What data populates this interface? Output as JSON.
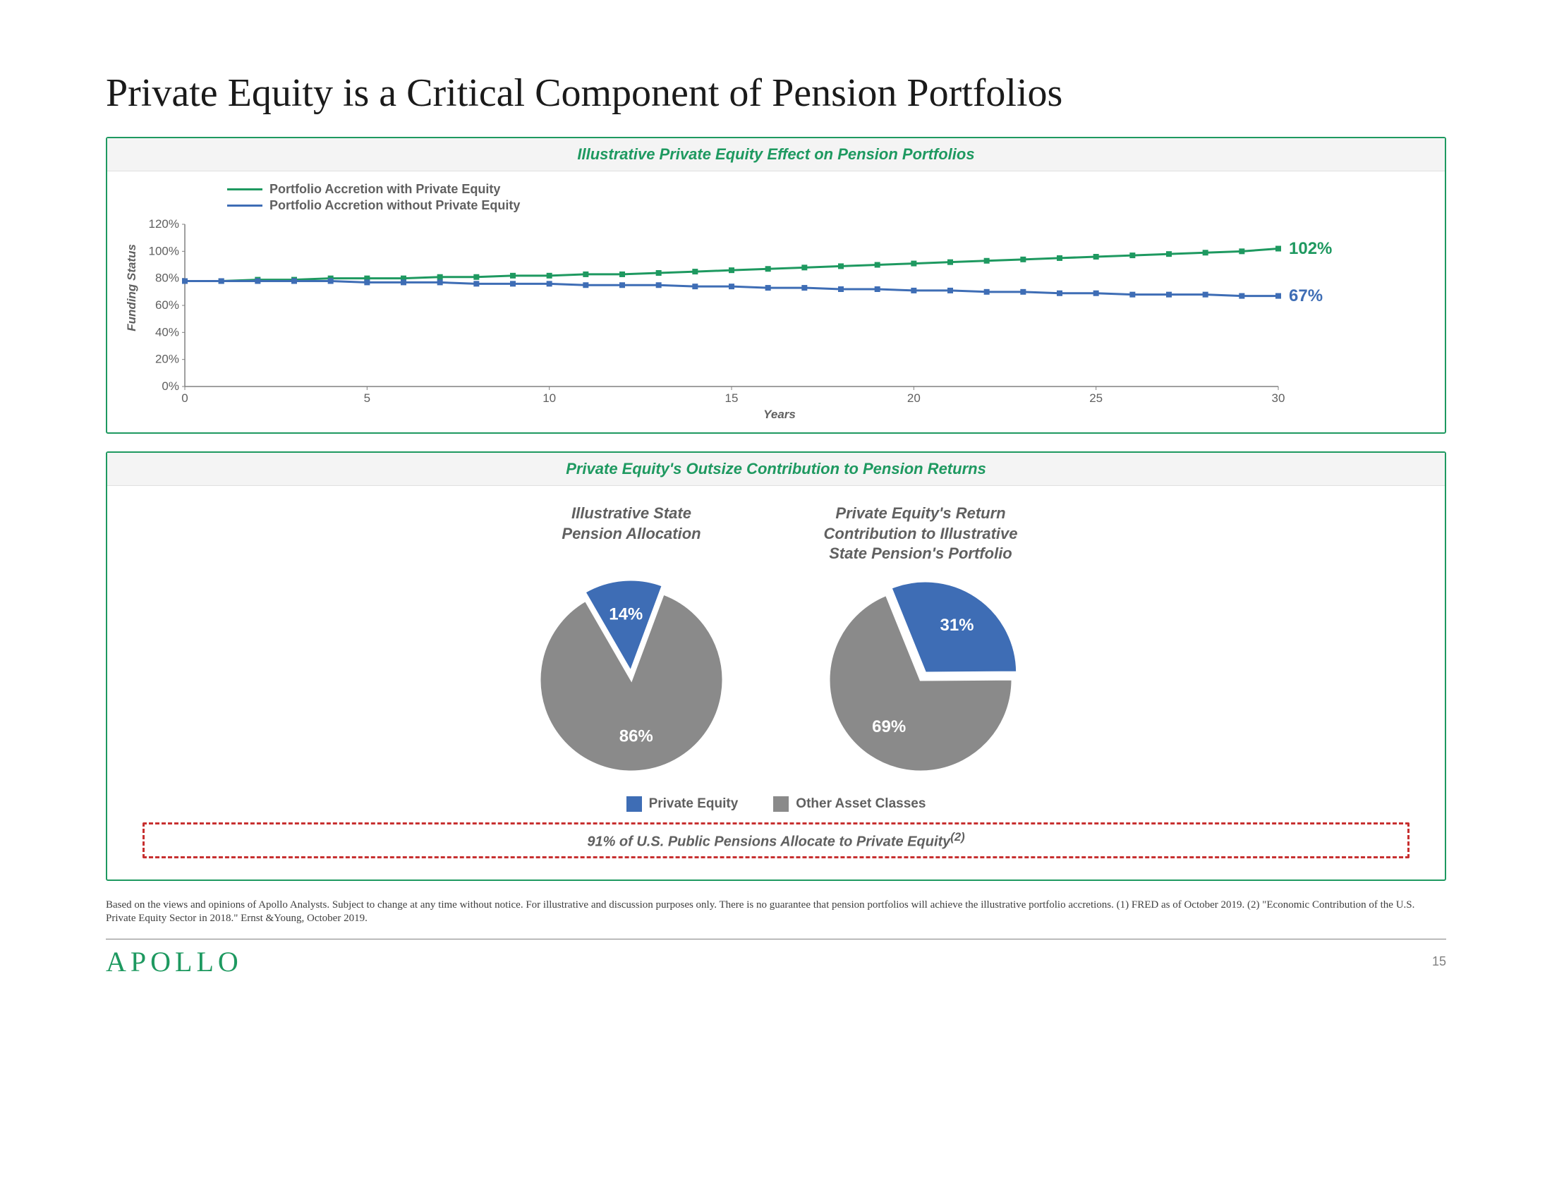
{
  "page_title": "Private Equity is a Critical Component of Pension Portfolios",
  "page_number": "15",
  "logo_text": "APOLLO",
  "colors": {
    "accent_green": "#1e9960",
    "series_green": "#1e9960",
    "series_blue": "#3e6db5",
    "pie_blue": "#3e6db5",
    "pie_gray": "#8a8a8a",
    "grid": "#e0e0e0",
    "axis": "#808080",
    "callout_border": "#c73030",
    "text_gray": "#606060"
  },
  "line_chart": {
    "panel_title": "Illustrative Private Equity Effect on Pension Portfolios",
    "y_axis_label": "Funding Status",
    "x_axis_label": "Years",
    "y_min": 0,
    "y_max": 120,
    "y_step": 20,
    "y_suffix": "%",
    "x_min": 0,
    "x_max": 30,
    "x_step": 5,
    "series": [
      {
        "name": "Portfolio Accretion with Private Equity",
        "color": "#1e9960",
        "data": [
          78,
          78,
          79,
          79,
          80,
          80,
          80,
          81,
          81,
          82,
          82,
          83,
          83,
          84,
          85,
          86,
          87,
          88,
          89,
          90,
          91,
          92,
          93,
          94,
          95,
          96,
          97,
          98,
          99,
          100,
          102
        ],
        "end_label": "102%"
      },
      {
        "name": "Portfolio Accretion without Private Equity",
        "color": "#3e6db5",
        "data": [
          78,
          78,
          78,
          78,
          78,
          77,
          77,
          77,
          76,
          76,
          76,
          75,
          75,
          75,
          74,
          74,
          73,
          73,
          72,
          72,
          71,
          71,
          70,
          70,
          69,
          69,
          68,
          68,
          68,
          67,
          67
        ],
        "end_label": "67%"
      }
    ]
  },
  "pie_panel": {
    "panel_title": "Private Equity's Outsize Contribution to Pension Returns",
    "legend": [
      {
        "label": "Private Equity",
        "color": "#3e6db5"
      },
      {
        "label": "Other Asset Classes",
        "color": "#8a8a8a"
      }
    ],
    "callout_text": "91% of U.S. Public Pensions Allocate to Private Equity",
    "callout_sup": "(2)",
    "pies": [
      {
        "title": "Illustrative State\nPension Allocation",
        "slices": [
          {
            "label": "14%",
            "value": 14,
            "color": "#3e6db5"
          },
          {
            "label": "86%",
            "value": 86,
            "color": "#8a8a8a"
          }
        ],
        "start_angle_deg": -30,
        "explode_index": 0
      },
      {
        "title": "Private Equity's Return\nContribution to Illustrative\nState Pension's Portfolio",
        "slices": [
          {
            "label": "31%",
            "value": 31,
            "color": "#3e6db5"
          },
          {
            "label": "69%",
            "value": 69,
            "color": "#8a8a8a"
          }
        ],
        "start_angle_deg": -22,
        "explode_index": 0
      }
    ]
  },
  "footnote": "Based on the views and opinions of Apollo Analysts. Subject to change at any time without notice. For illustrative and discussion purposes only. There is no guarantee that pension portfolios will achieve the illustrative portfolio accretions.  (1) FRED as of October 2019. (2) \"Economic Contribution of the U.S. Private Equity Sector in 2018.\" Ernst &Young, October 2019."
}
